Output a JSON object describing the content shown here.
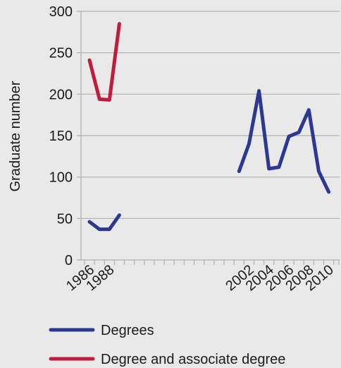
{
  "chart_data": {
    "type": "line",
    "title": "",
    "xlabel": "",
    "ylabel": "Graduate number",
    "ylim": [
      0,
      300
    ],
    "yticks": [
      0,
      50,
      100,
      150,
      200,
      250,
      300
    ],
    "xlim": [
      1986,
      2010
    ],
    "xticks": [
      1986,
      1988,
      2002,
      2004,
      2006,
      2008,
      2010
    ],
    "grid": "horizontal",
    "legend_position": "bottom",
    "series": [
      {
        "name": "Degrees",
        "color": "#2b3990",
        "points": [
          {
            "x": 1986,
            "y": 46
          },
          {
            "x": 1987,
            "y": 37
          },
          {
            "x": 1988,
            "y": 37
          },
          {
            "x": 1989,
            "y": 54
          },
          {
            "x": 2001,
            "y": 107
          },
          {
            "x": 2002,
            "y": 140
          },
          {
            "x": 2003,
            "y": 204
          },
          {
            "x": 2004,
            "y": 110
          },
          {
            "x": 2005,
            "y": 112
          },
          {
            "x": 2006,
            "y": 149
          },
          {
            "x": 2007,
            "y": 154
          },
          {
            "x": 2008,
            "y": 181
          },
          {
            "x": 2009,
            "y": 107
          },
          {
            "x": 2010,
            "y": 82
          }
        ]
      },
      {
        "name": "Degree and associate degree",
        "color": "#be1e3c",
        "points": [
          {
            "x": 1986,
            "y": 241
          },
          {
            "x": 1987,
            "y": 194
          },
          {
            "x": 1988,
            "y": 193
          },
          {
            "x": 1989,
            "y": 285
          }
        ]
      }
    ]
  }
}
